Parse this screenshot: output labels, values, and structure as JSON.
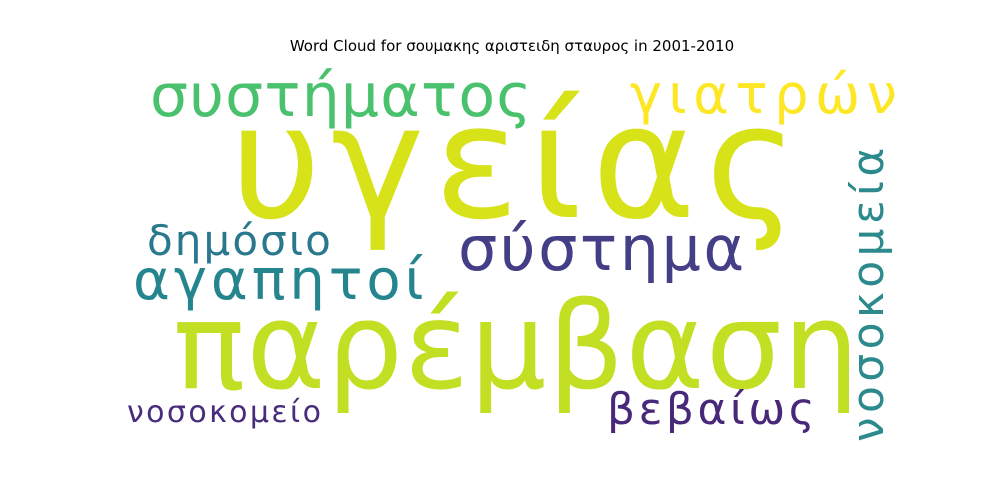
{
  "title": "Word Cloud for σουμακης αριστειδη σταυρος in 2001-2010",
  "words": [
    {
      "key": "ygeias",
      "text": "υγείας",
      "color": "#d8e219"
    },
    {
      "key": "paremvasi",
      "text": "παρέμβαση",
      "color": "#c2df23"
    },
    {
      "key": "systimatos",
      "text": "συστήματος",
      "color": "#4ac16d"
    },
    {
      "key": "giatron",
      "text": "γιατρών",
      "color": "#fde725"
    },
    {
      "key": "systima",
      "text": "σύστημα",
      "color": "#433e85"
    },
    {
      "key": "dimosio",
      "text": "δημόσιο",
      "color": "#2a788e"
    },
    {
      "key": "agapitoi",
      "text": "αγαπητοί",
      "color": "#25858e"
    },
    {
      "key": "nosokomeia",
      "text": "νοσοκομεία",
      "color": "#2c8a8c"
    },
    {
      "key": "vevaios",
      "text": "βεβαίως",
      "color": "#482878"
    },
    {
      "key": "nosokomeio",
      "text": "νοσοκομείο",
      "color": "#472d7b"
    }
  ]
}
